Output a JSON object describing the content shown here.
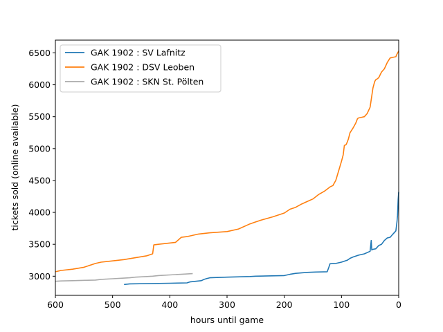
{
  "chart_data": {
    "type": "line",
    "title": "",
    "xlabel": "hours until game",
    "ylabel": "tickets sold (online available)",
    "xlim": [
      600,
      0
    ],
    "ylim": [
      2700,
      6700
    ],
    "x_ticks": [
      600,
      500,
      400,
      300,
      200,
      100,
      0
    ],
    "y_ticks": [
      3000,
      3500,
      4000,
      4500,
      5000,
      5500,
      6000,
      6500
    ],
    "grid": false,
    "legend_position": "top-left",
    "series": [
      {
        "name": "GAK 1902 : SV Lafnitz",
        "color": "#1f77b4",
        "x": [
          480,
          470,
          400,
          370,
          365,
          345,
          340,
          335,
          330,
          300,
          260,
          250,
          200,
          190,
          180,
          160,
          145,
          125,
          122,
          120,
          110,
          100,
          90,
          85,
          80,
          70,
          60,
          50,
          48,
          47,
          46,
          40,
          35,
          30,
          25,
          20,
          15,
          10,
          5,
          3,
          2,
          1,
          0
        ],
        "y": [
          2870,
          2880,
          2890,
          2895,
          2910,
          2930,
          2950,
          2965,
          2975,
          2985,
          2995,
          3000,
          3010,
          3030,
          3045,
          3060,
          3065,
          3070,
          3140,
          3195,
          3200,
          3220,
          3250,
          3280,
          3300,
          3330,
          3350,
          3390,
          3560,
          3410,
          3420,
          3430,
          3480,
          3500,
          3560,
          3600,
          3610,
          3660,
          3710,
          3850,
          3950,
          4200,
          4320
        ]
      },
      {
        "name": "GAK 1902 : DSV Leoben",
        "color": "#ff7f0e",
        "x": [
          600,
          590,
          570,
          550,
          530,
          520,
          500,
          480,
          460,
          440,
          430,
          428,
          420,
          390,
          380,
          370,
          350,
          330,
          300,
          280,
          260,
          250,
          240,
          220,
          210,
          200,
          190,
          180,
          170,
          160,
          150,
          140,
          130,
          120,
          115,
          110,
          105,
          100,
          97,
          95,
          92,
          90,
          88,
          85,
          80,
          78,
          75,
          72,
          70,
          65,
          60,
          55,
          50,
          45,
          42,
          40,
          38,
          35,
          30,
          25,
          20,
          15,
          10,
          5,
          3,
          0
        ],
        "y": [
          3070,
          3090,
          3110,
          3140,
          3200,
          3220,
          3240,
          3260,
          3290,
          3320,
          3350,
          3490,
          3500,
          3530,
          3610,
          3620,
          3660,
          3680,
          3700,
          3740,
          3820,
          3850,
          3880,
          3930,
          3960,
          3990,
          4050,
          4080,
          4130,
          4170,
          4210,
          4280,
          4330,
          4400,
          4420,
          4500,
          4650,
          4800,
          4900,
          5050,
          5060,
          5100,
          5150,
          5250,
          5320,
          5350,
          5400,
          5470,
          5480,
          5490,
          5500,
          5550,
          5650,
          5950,
          6050,
          6080,
          6090,
          6110,
          6200,
          6250,
          6350,
          6420,
          6430,
          6440,
          6480,
          6530
        ]
      },
      {
        "name": "GAK 1902 : SKN St. Pölten",
        "color": "#aaaaaa",
        "x": [
          600,
          590,
          570,
          550,
          530,
          520,
          500,
          480,
          470,
          460,
          440,
          430,
          420,
          410,
          400,
          390,
          380,
          370,
          360
        ],
        "y": [
          2920,
          2925,
          2930,
          2935,
          2940,
          2950,
          2960,
          2970,
          2975,
          2985,
          2995,
          3000,
          3010,
          3015,
          3020,
          3025,
          3030,
          3035,
          3040
        ]
      }
    ]
  }
}
